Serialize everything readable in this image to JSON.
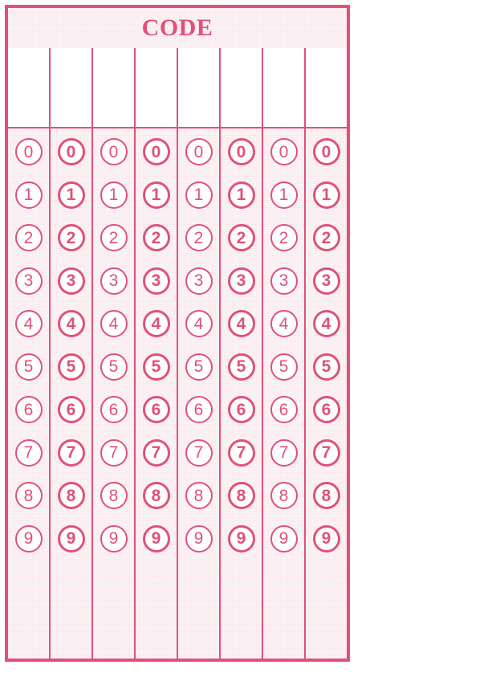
{
  "form": {
    "title": "CODE",
    "columns": 8,
    "digits": [
      "0",
      "1",
      "2",
      "3",
      "4",
      "5",
      "6",
      "7",
      "8",
      "9"
    ]
  },
  "colors": {
    "accent": "#e0517a",
    "background": "#ffffff"
  }
}
